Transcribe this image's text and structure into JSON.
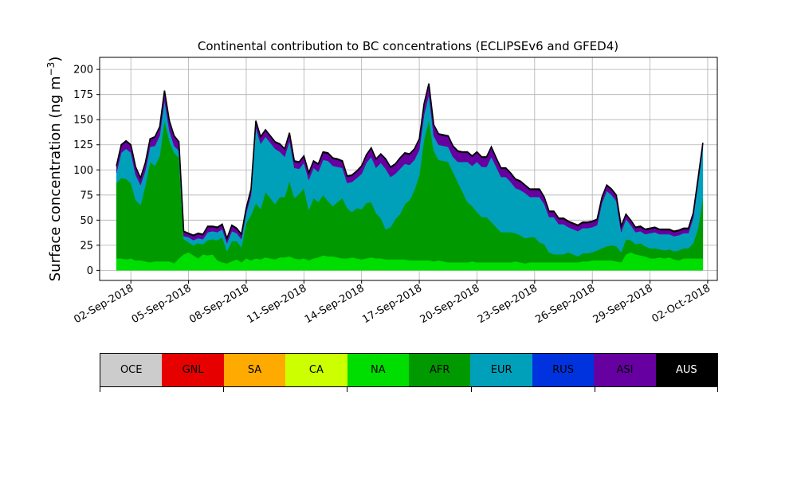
{
  "chart_data": {
    "type": "area",
    "stacked": true,
    "title": "Continental contribution to BC concentrations (ECLIPSEv6 and GFED4)",
    "ylabel": "Surface concentration (ng m",
    "ylabel_sup": "−3",
    "ylabel_close": ")",
    "xlabel": "",
    "ylim": [
      -10,
      212
    ],
    "xlim": [
      "2018-08-31T09:00",
      "2018-10-02T12:00"
    ],
    "grid": true,
    "yticks": [
      0,
      25,
      50,
      75,
      100,
      125,
      150,
      175,
      200
    ],
    "ytick_labels": [
      "0",
      "25",
      "50",
      "75",
      "100",
      "125",
      "150",
      "175",
      "200"
    ],
    "xticks": [
      "2018-09-02",
      "2018-09-05",
      "2018-09-08",
      "2018-09-11",
      "2018-09-14",
      "2018-09-17",
      "2018-09-20",
      "2018-09-23",
      "2018-09-26",
      "2018-09-29",
      "2018-10-02"
    ],
    "xtick_labels": [
      "02-Sep-2018",
      "05-Sep-2018",
      "08-Sep-2018",
      "11-Sep-2018",
      "14-Sep-2018",
      "17-Sep-2018",
      "20-Sep-2018",
      "23-Sep-2018",
      "26-Sep-2018",
      "29-Sep-2018",
      "02-Oct-2018"
    ],
    "x": [
      "2018-09-01T06:00",
      "2018-09-01T12:00",
      "2018-09-01T18:00",
      "2018-09-02T00:00",
      "2018-09-02T06:00",
      "2018-09-02T12:00",
      "2018-09-02T18:00",
      "2018-09-03T00:00",
      "2018-09-03T06:00",
      "2018-09-03T12:00",
      "2018-09-03T18:00",
      "2018-09-04T00:00",
      "2018-09-04T06:00",
      "2018-09-04T12:00",
      "2018-09-04T18:00",
      "2018-09-05T00:00",
      "2018-09-05T06:00",
      "2018-09-05T12:00",
      "2018-09-05T18:00",
      "2018-09-06T00:00",
      "2018-09-06T06:00",
      "2018-09-06T12:00",
      "2018-09-06T18:00",
      "2018-09-07T00:00",
      "2018-09-07T06:00",
      "2018-09-07T12:00",
      "2018-09-07T18:00",
      "2018-09-08T00:00",
      "2018-09-08T06:00",
      "2018-09-08T12:00",
      "2018-09-08T18:00",
      "2018-09-09T00:00",
      "2018-09-09T06:00",
      "2018-09-09T12:00",
      "2018-09-09T18:00",
      "2018-09-10T00:00",
      "2018-09-10T06:00",
      "2018-09-10T12:00",
      "2018-09-10T18:00",
      "2018-09-11T00:00",
      "2018-09-11T06:00",
      "2018-09-11T12:00",
      "2018-09-11T18:00",
      "2018-09-12T00:00",
      "2018-09-12T06:00",
      "2018-09-12T12:00",
      "2018-09-12T18:00",
      "2018-09-13T00:00",
      "2018-09-13T06:00",
      "2018-09-13T12:00",
      "2018-09-13T18:00",
      "2018-09-14T00:00",
      "2018-09-14T06:00",
      "2018-09-14T12:00",
      "2018-09-14T18:00",
      "2018-09-15T00:00",
      "2018-09-15T06:00",
      "2018-09-15T12:00",
      "2018-09-15T18:00",
      "2018-09-16T00:00",
      "2018-09-16T06:00",
      "2018-09-16T12:00",
      "2018-09-16T18:00",
      "2018-09-17T00:00",
      "2018-09-17T06:00",
      "2018-09-17T12:00",
      "2018-09-17T18:00",
      "2018-09-18T00:00",
      "2018-09-18T06:00",
      "2018-09-18T12:00",
      "2018-09-18T18:00",
      "2018-09-19T00:00",
      "2018-09-19T06:00",
      "2018-09-19T12:00",
      "2018-09-19T18:00",
      "2018-09-20T00:00",
      "2018-09-20T06:00",
      "2018-09-20T12:00",
      "2018-09-20T18:00",
      "2018-09-21T00:00",
      "2018-09-21T06:00",
      "2018-09-21T12:00",
      "2018-09-21T18:00",
      "2018-09-22T00:00",
      "2018-09-22T06:00",
      "2018-09-22T12:00",
      "2018-09-22T18:00",
      "2018-09-23T00:00",
      "2018-09-23T06:00",
      "2018-09-23T12:00",
      "2018-09-23T18:00",
      "2018-09-24T00:00",
      "2018-09-24T06:00",
      "2018-09-24T12:00",
      "2018-09-24T18:00",
      "2018-09-25T00:00",
      "2018-09-25T06:00",
      "2018-09-25T12:00",
      "2018-09-25T18:00",
      "2018-09-26T00:00",
      "2018-09-26T06:00",
      "2018-09-26T12:00",
      "2018-09-26T18:00",
      "2018-09-27T00:00",
      "2018-09-27T06:00",
      "2018-09-27T12:00",
      "2018-09-27T18:00",
      "2018-09-28T00:00",
      "2018-09-28T06:00",
      "2018-09-28T12:00",
      "2018-09-28T18:00",
      "2018-09-29T00:00",
      "2018-09-29T06:00",
      "2018-09-29T12:00",
      "2018-09-29T18:00",
      "2018-09-30T00:00",
      "2018-09-30T06:00",
      "2018-09-30T12:00",
      "2018-09-30T18:00",
      "2018-10-01T00:00",
      "2018-10-01T06:00",
      "2018-10-01T12:00",
      "2018-10-01T18:00"
    ],
    "series": [
      {
        "name": "NA",
        "color": "#00dd00",
        "values": [
          12,
          12,
          11,
          12,
          10,
          10,
          9,
          8,
          9,
          9,
          9,
          9,
          7,
          12,
          16,
          18,
          15,
          12,
          16,
          15,
          16,
          10,
          8,
          7,
          9,
          11,
          8,
          12,
          10,
          12,
          11,
          13,
          12,
          11,
          13,
          13,
          14,
          12,
          11,
          12,
          10,
          12,
          13,
          15,
          14,
          14,
          13,
          12,
          12,
          13,
          12,
          11,
          12,
          13,
          12,
          12,
          11,
          11,
          11,
          11,
          11,
          10,
          10,
          10,
          10,
          10,
          9,
          10,
          9,
          8,
          8,
          8,
          8,
          8,
          9,
          8,
          8,
          8,
          8,
          8,
          8,
          8,
          8,
          9,
          8,
          7,
          8,
          8,
          8,
          8,
          8,
          8,
          8,
          8,
          8,
          8,
          8,
          9,
          9,
          10,
          10,
          10,
          10,
          10,
          9,
          8,
          16,
          18,
          16,
          15,
          14,
          12,
          12,
          13,
          12,
          13,
          11,
          10,
          12,
          12,
          12,
          12,
          12
        ]
      },
      {
        "name": "AFR",
        "color": "#009900",
        "values": [
          75,
          80,
          80,
          75,
          60,
          55,
          75,
          100,
          95,
          105,
          140,
          120,
          110,
          100,
          15,
          10,
          10,
          15,
          10,
          15,
          15,
          20,
          25,
          12,
          20,
          18,
          15,
          35,
          45,
          55,
          50,
          65,
          60,
          55,
          60,
          60,
          75,
          60,
          65,
          70,
          50,
          60,
          55,
          60,
          55,
          50,
          55,
          60,
          50,
          45,
          50,
          50,
          55,
          55,
          45,
          40,
          30,
          32,
          40,
          45,
          55,
          60,
          70,
          85,
          120,
          140,
          110,
          100,
          100,
          100,
          90,
          80,
          70,
          60,
          55,
          50,
          45,
          45,
          40,
          35,
          30,
          30,
          30,
          28,
          27,
          25,
          25,
          25,
          20,
          18,
          10,
          8,
          8,
          8,
          10,
          8,
          6,
          8,
          8,
          8,
          10,
          12,
          14,
          15,
          15,
          10,
          15,
          12,
          10,
          12,
          10,
          10,
          10,
          8,
          8,
          8,
          8,
          10,
          10,
          10,
          15,
          30,
          60
        ]
      },
      {
        "name": "EUR",
        "color": "#00a0bb",
        "values": [
          10,
          25,
          30,
          30,
          25,
          20,
          15,
          15,
          20,
          20,
          20,
          10,
          7,
          7,
          3,
          5,
          5,
          5,
          5,
          8,
          8,
          8,
          8,
          8,
          10,
          8,
          8,
          10,
          20,
          75,
          65,
          55,
          55,
          55,
          45,
          40,
          40,
          30,
          25,
          25,
          30,
          30,
          30,
          35,
          40,
          40,
          35,
          30,
          25,
          30,
          30,
          35,
          40,
          45,
          45,
          55,
          60,
          50,
          45,
          45,
          40,
          35,
          30,
          25,
          25,
          25,
          15,
          15,
          15,
          15,
          15,
          20,
          30,
          40,
          40,
          50,
          50,
          50,
          65,
          60,
          55,
          55,
          50,
          45,
          45,
          45,
          40,
          40,
          45,
          40,
          35,
          37,
          30,
          30,
          25,
          25,
          25,
          25,
          25,
          25,
          25,
          45,
          55,
          50,
          45,
          20,
          20,
          15,
          12,
          12,
          12,
          15,
          16,
          15,
          16,
          15,
          15,
          15,
          15,
          15,
          25,
          45,
          50
        ]
      },
      {
        "name": "ASI",
        "color": "#6600a0",
        "values": [
          6,
          7,
          7,
          7,
          7,
          6,
          7,
          7,
          8,
          8,
          9,
          9,
          9,
          8,
          4,
          3,
          4,
          4,
          4,
          5,
          4,
          4,
          4,
          4,
          5,
          4,
          4,
          4,
          5,
          6,
          6,
          6,
          6,
          6,
          7,
          7,
          7,
          6,
          6,
          6,
          6,
          6,
          7,
          7,
          7,
          7,
          7,
          6,
          6,
          6,
          6,
          7,
          7,
          8,
          8,
          8,
          9,
          9,
          9,
          10,
          10,
          10,
          10,
          10,
          10,
          10,
          10,
          10,
          10,
          10,
          10,
          10,
          9,
          9,
          9,
          9,
          9,
          9,
          9,
          8,
          8,
          8,
          8,
          8,
          8,
          7,
          7,
          7,
          7,
          6,
          5,
          5,
          5,
          5,
          5,
          5,
          5,
          5,
          5,
          5,
          5,
          5,
          5,
          5,
          5,
          5,
          4,
          4,
          4,
          4,
          4,
          4,
          4,
          4,
          4,
          4,
          4,
          4,
          4,
          4,
          4,
          4,
          4
        ]
      },
      {
        "name": "AUS",
        "color": "#000000",
        "values": [
          1,
          1,
          1,
          1,
          1,
          1,
          1,
          1,
          1,
          1,
          1,
          1,
          1,
          1,
          1,
          1,
          1,
          1,
          1,
          1,
          1,
          1,
          1,
          1,
          1,
          1,
          1,
          1,
          1,
          1,
          1,
          1,
          1,
          1,
          1,
          1,
          1,
          1,
          1,
          1,
          1,
          1,
          1,
          1,
          1,
          1,
          1,
          1,
          1,
          1,
          1,
          1,
          1,
          1,
          1,
          1,
          1,
          1,
          1,
          1,
          1,
          1,
          1,
          1,
          1,
          1,
          1,
          1,
          1,
          1,
          1,
          1,
          1,
          1,
          1,
          1,
          1,
          1,
          1,
          1,
          1,
          1,
          1,
          1,
          1,
          1,
          1,
          1,
          1,
          1,
          1,
          1,
          1,
          1,
          1,
          1,
          1,
          1,
          1,
          1,
          1,
          1,
          1,
          1,
          1,
          1,
          1,
          1,
          1,
          1,
          1,
          1,
          1,
          1,
          1,
          1,
          1,
          1,
          1,
          1,
          1,
          1,
          1
        ]
      }
    ]
  },
  "legend": {
    "items": [
      {
        "label": "OCE",
        "color": "#cccccc"
      },
      {
        "label": "GNL",
        "color": "#e60000"
      },
      {
        "label": "SA",
        "color": "#ffaa00"
      },
      {
        "label": "CA",
        "color": "#ccff00"
      },
      {
        "label": "NA",
        "color": "#00dd00"
      },
      {
        "label": "AFR",
        "color": "#009900"
      },
      {
        "label": "EUR",
        "color": "#00a0bb"
      },
      {
        "label": "RUS",
        "color": "#0033dd"
      },
      {
        "label": "ASI",
        "color": "#6600a0"
      },
      {
        "label": "AUS",
        "color": "#000000",
        "text_color": "#ffffff"
      }
    ]
  }
}
